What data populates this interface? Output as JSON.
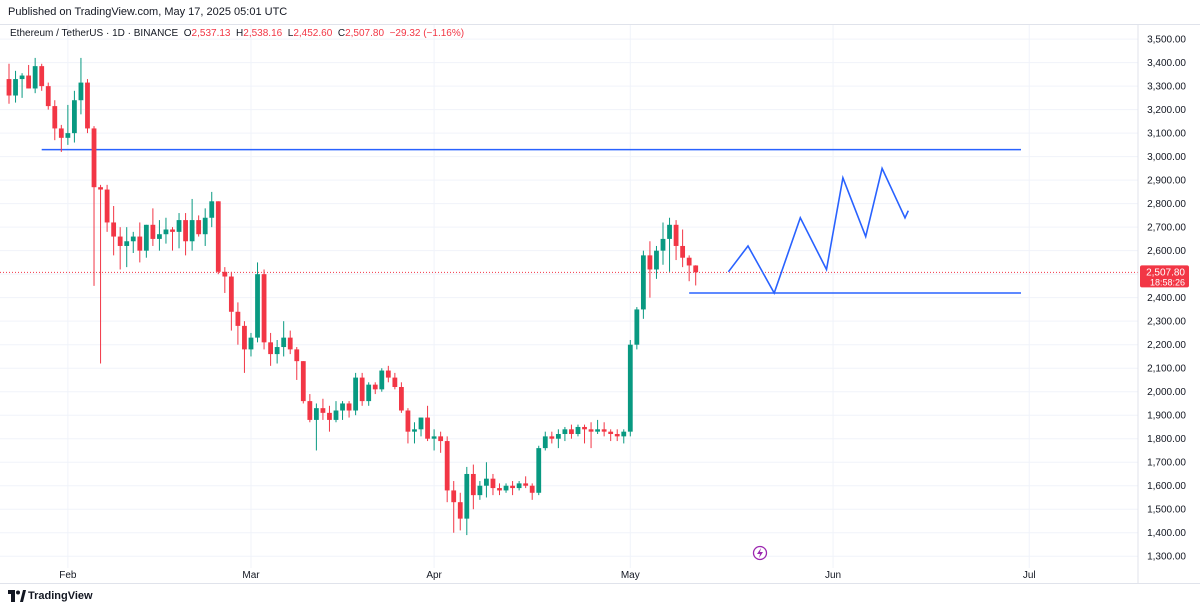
{
  "header": {
    "published_text": "Published on TradingView.com, May 17, 2025 05:01 UTC"
  },
  "legend": {
    "symbol": "Ethereum / TetherUS · 1D · BINANCE",
    "o_label": "O",
    "o_value": "2,537.13",
    "h_label": "H",
    "h_value": "2,538.16",
    "l_label": "L",
    "l_value": "2,452.60",
    "c_label": "C",
    "c_value": "2,507.80",
    "change": "−29.32 (−1.16%)"
  },
  "price_label": {
    "value": "2,507.80",
    "countdown": "18:58:26"
  },
  "footer": {
    "brand": "TradingView"
  },
  "colors": {
    "up": "#089981",
    "down": "#f23645",
    "line": "#2962ff",
    "grid": "#f0f3fa",
    "text": "#131722"
  },
  "chart_data": {
    "type": "candlestick",
    "symbol": "Ethereum / TetherUS",
    "interval": "1D",
    "exchange": "BINANCE",
    "y_range": [
      1250,
      3560
    ],
    "y_ticks": [
      3500,
      3400,
      3300,
      3200,
      3100,
      3000,
      2900,
      2800,
      2700,
      2600,
      2500,
      2400,
      2300,
      2200,
      2100,
      2000,
      1900,
      1800,
      1700,
      1600,
      1500,
      1400,
      1300
    ],
    "y_tick_labels": [
      "3,500.00",
      "3,400.00",
      "3,300.00",
      "3,200.00",
      "3,100.00",
      "3,000.00",
      "2,900.00",
      "2,800.00",
      "2,700.00",
      "2,600.00",
      "2,500.00",
      "2,400.00",
      "2,300.00",
      "2,200.00",
      "2,100.00",
      "2,000.00",
      "1,900.00",
      "1,800.00",
      "1,700.00",
      "1,600.00",
      "1,500.00",
      "1,400.00",
      "1,300.00"
    ],
    "x_labels": [
      {
        "label": "Feb",
        "index": 9
      },
      {
        "label": "Mar",
        "index": 37
      },
      {
        "label": "Apr",
        "index": 65
      },
      {
        "label": "May",
        "index": 95
      },
      {
        "label": "Jun",
        "index": 126
      },
      {
        "label": "Jul",
        "index": 156
      }
    ],
    "candles": [
      [
        3330,
        3395,
        3225,
        3260
      ],
      [
        3260,
        3365,
        3230,
        3330
      ],
      [
        3330,
        3355,
        3250,
        3345
      ],
      [
        3345,
        3390,
        3290,
        3290
      ],
      [
        3290,
        3420,
        3270,
        3385
      ],
      [
        3385,
        3395,
        3280,
        3300
      ],
      [
        3300,
        3315,
        3200,
        3215
      ],
      [
        3215,
        3240,
        3070,
        3120
      ],
      [
        3120,
        3135,
        3020,
        3080
      ],
      [
        3080,
        3220,
        3050,
        3100
      ],
      [
        3100,
        3280,
        3060,
        3240
      ],
      [
        3240,
        3420,
        3180,
        3315
      ],
      [
        3315,
        3330,
        3100,
        3120
      ],
      [
        3120,
        3130,
        2450,
        2870
      ],
      [
        2870,
        2880,
        2120,
        2860
      ],
      [
        2860,
        2880,
        2680,
        2720
      ],
      [
        2720,
        2790,
        2580,
        2660
      ],
      [
        2660,
        2700,
        2520,
        2620
      ],
      [
        2620,
        2700,
        2530,
        2640
      ],
      [
        2640,
        2680,
        2590,
        2660
      ],
      [
        2660,
        2720,
        2550,
        2600
      ],
      [
        2600,
        2710,
        2570,
        2710
      ],
      [
        2710,
        2780,
        2620,
        2650
      ],
      [
        2650,
        2730,
        2600,
        2670
      ],
      [
        2670,
        2740,
        2630,
        2690
      ],
      [
        2690,
        2700,
        2600,
        2680
      ],
      [
        2680,
        2760,
        2610,
        2730
      ],
      [
        2730,
        2760,
        2580,
        2640
      ],
      [
        2640,
        2820,
        2600,
        2730
      ],
      [
        2730,
        2750,
        2660,
        2670
      ],
      [
        2670,
        2780,
        2620,
        2740
      ],
      [
        2740,
        2850,
        2700,
        2810
      ],
      [
        2810,
        2810,
        2500,
        2510
      ],
      [
        2510,
        2530,
        2420,
        2490
      ],
      [
        2490,
        2510,
        2260,
        2340
      ],
      [
        2340,
        2380,
        2200,
        2280
      ],
      [
        2280,
        2300,
        2080,
        2180
      ],
      [
        2180,
        2250,
        2150,
        2230
      ],
      [
        2230,
        2550,
        2210,
        2500
      ],
      [
        2500,
        2520,
        2180,
        2210
      ],
      [
        2210,
        2250,
        2110,
        2160
      ],
      [
        2160,
        2220,
        2120,
        2190
      ],
      [
        2190,
        2300,
        2150,
        2230
      ],
      [
        2230,
        2260,
        2160,
        2180
      ],
      [
        2180,
        2190,
        2050,
        2130
      ],
      [
        2130,
        2130,
        1950,
        1960
      ],
      [
        1960,
        1990,
        1870,
        1880
      ],
      [
        1880,
        1950,
        1750,
        1930
      ],
      [
        1930,
        1970,
        1880,
        1910
      ],
      [
        1910,
        1940,
        1830,
        1880
      ],
      [
        1880,
        1960,
        1870,
        1920
      ],
      [
        1920,
        1960,
        1880,
        1950
      ],
      [
        1950,
        1960,
        1890,
        1920
      ],
      [
        1920,
        2080,
        1900,
        2060
      ],
      [
        2060,
        2080,
        1940,
        1960
      ],
      [
        1960,
        2040,
        1940,
        2030
      ],
      [
        2030,
        2040,
        1990,
        2010
      ],
      [
        2010,
        2100,
        2000,
        2090
      ],
      [
        2090,
        2110,
        2040,
        2060
      ],
      [
        2060,
        2080,
        2010,
        2020
      ],
      [
        2020,
        2040,
        1910,
        1920
      ],
      [
        1920,
        1930,
        1780,
        1830
      ],
      [
        1830,
        1870,
        1780,
        1840
      ],
      [
        1840,
        1890,
        1810,
        1890
      ],
      [
        1890,
        1940,
        1790,
        1800
      ],
      [
        1800,
        1840,
        1750,
        1810
      ],
      [
        1810,
        1830,
        1740,
        1790
      ],
      [
        1790,
        1810,
        1530,
        1580
      ],
      [
        1580,
        1620,
        1400,
        1530
      ],
      [
        1530,
        1570,
        1410,
        1460
      ],
      [
        1460,
        1680,
        1390,
        1650
      ],
      [
        1650,
        1690,
        1500,
        1560
      ],
      [
        1560,
        1620,
        1540,
        1600
      ],
      [
        1600,
        1700,
        1550,
        1630
      ],
      [
        1630,
        1650,
        1560,
        1590
      ],
      [
        1590,
        1610,
        1560,
        1580
      ],
      [
        1580,
        1610,
        1570,
        1600
      ],
      [
        1600,
        1620,
        1560,
        1590
      ],
      [
        1590,
        1620,
        1580,
        1610
      ],
      [
        1610,
        1640,
        1590,
        1600
      ],
      [
        1600,
        1610,
        1540,
        1570
      ],
      [
        1570,
        1770,
        1560,
        1760
      ],
      [
        1760,
        1830,
        1750,
        1810
      ],
      [
        1810,
        1830,
        1780,
        1800
      ],
      [
        1800,
        1840,
        1760,
        1820
      ],
      [
        1820,
        1850,
        1790,
        1840
      ],
      [
        1840,
        1860,
        1800,
        1820
      ],
      [
        1820,
        1860,
        1810,
        1850
      ],
      [
        1850,
        1860,
        1780,
        1840
      ],
      [
        1840,
        1870,
        1760,
        1830
      ],
      [
        1830,
        1880,
        1820,
        1840
      ],
      [
        1840,
        1870,
        1810,
        1830
      ],
      [
        1830,
        1840,
        1790,
        1820
      ],
      [
        1820,
        1840,
        1790,
        1810
      ],
      [
        1810,
        1840,
        1780,
        1830
      ],
      [
        1830,
        2220,
        1810,
        2200
      ],
      [
        2200,
        2360,
        2180,
        2350
      ],
      [
        2350,
        2600,
        2310,
        2580
      ],
      [
        2580,
        2640,
        2400,
        2520
      ],
      [
        2520,
        2620,
        2480,
        2600
      ],
      [
        2600,
        2720,
        2540,
        2650
      ],
      [
        2650,
        2740,
        2510,
        2710
      ],
      [
        2710,
        2730,
        2560,
        2620
      ],
      [
        2620,
        2690,
        2530,
        2570
      ],
      [
        2570,
        2580,
        2470,
        2537
      ],
      [
        2537,
        2538,
        2452,
        2508
      ]
    ],
    "horizontal_lines": [
      {
        "price": 3030,
        "from_index": 5
      },
      {
        "price": 2420,
        "from_index": 104
      }
    ],
    "annotation_path": [
      [
        110,
        2510
      ],
      [
        113,
        2620
      ],
      [
        117,
        2420
      ],
      [
        121,
        2740
      ],
      [
        125,
        2520
      ],
      [
        127.5,
        2910
      ],
      [
        131,
        2660
      ],
      [
        133.5,
        2950
      ],
      [
        137,
        2740
      ],
      [
        137.5,
        2770
      ]
    ],
    "last_price": 2507.8
  }
}
